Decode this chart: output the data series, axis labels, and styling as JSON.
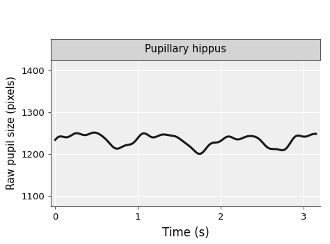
{
  "title": "Pupillary hippus",
  "xlabel": "Time (s)",
  "ylabel": "Raw pupil size (pixels)",
  "xlim": [
    -0.05,
    3.2
  ],
  "ylim": [
    1075,
    1425
  ],
  "yticks": [
    1100,
    1200,
    1300,
    1400
  ],
  "xticks": [
    0,
    1,
    2,
    3
  ],
  "background_color": "#EFEFEF",
  "strip_color": "#D4D4D4",
  "grid_color": "#FFFFFF",
  "line_color": "#1A1A1A",
  "line_width": 2.2,
  "signal_params": {
    "mean": 1232,
    "freq1": 1.05,
    "amp1": 17,
    "phase1": -0.5,
    "freq2": 2.1,
    "amp2": 7,
    "phase2": 0.8,
    "freq3": 0.35,
    "amp3": 5,
    "phase3": 0.2,
    "freq4": 3.8,
    "amp4": 3,
    "phase4": 1.2,
    "freq5": 4.9,
    "amp5": 2,
    "phase5": 0.5,
    "n_points": 600,
    "t_start": 0,
    "t_end": 3.15
  }
}
